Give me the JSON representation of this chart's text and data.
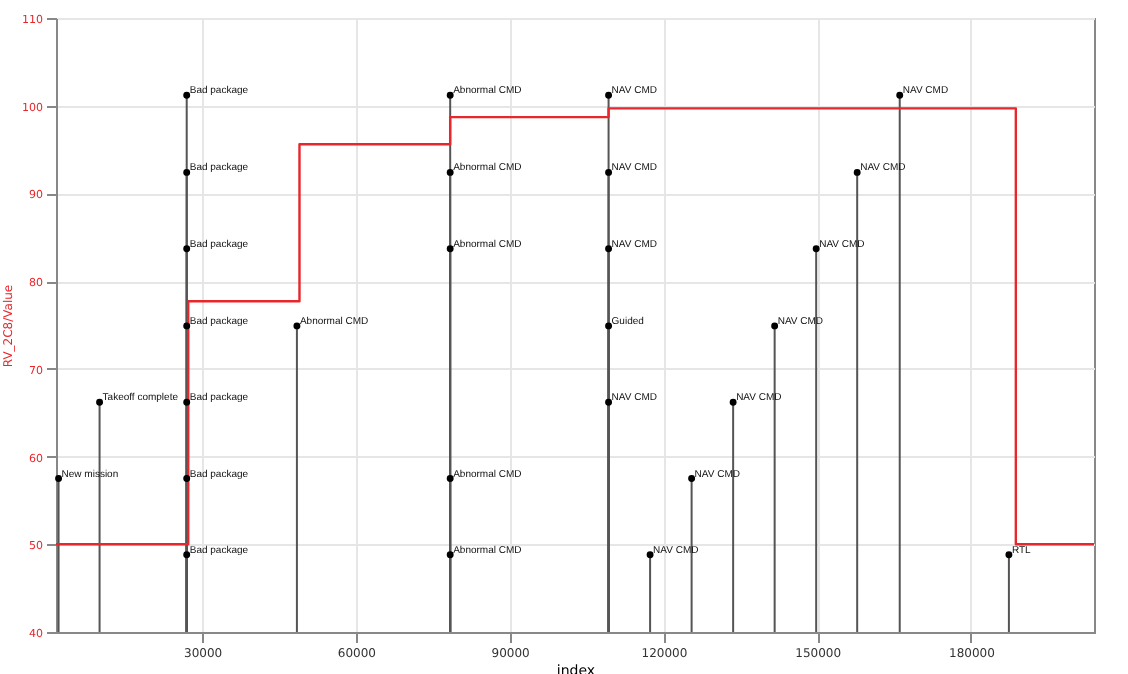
{
  "chart_data": {
    "type": "step",
    "xlabel": "index",
    "ylabel": "RV_2C8/Value",
    "xlim": [
      1500,
      204000
    ],
    "xticks": [
      30000,
      60000,
      90000,
      120000,
      150000,
      180000
    ],
    "ylim": [
      40,
      110
    ],
    "yticks": [
      40,
      50,
      60,
      70,
      80,
      90,
      100,
      110
    ],
    "grid": true,
    "series": [
      {
        "color": "#e8262b",
        "x": [
          1500,
          27300,
          49000,
          78400,
          109300,
          188750,
          204000
        ],
        "values": [
          50,
          77.7,
          95.6,
          98.7,
          99.7,
          50,
          50
        ]
      }
    ],
    "annotations": [
      {
        "text": "New mission",
        "x": 2000,
        "y": 57.5
      },
      {
        "text": "Takeoff complete",
        "x": 10000,
        "y": 66.2
      },
      {
        "text": "Bad package",
        "x": 27000,
        "y": 101.2
      },
      {
        "text": "Bad package",
        "x": 27000,
        "y": 92.4
      },
      {
        "text": "Bad package",
        "x": 27000,
        "y": 83.7
      },
      {
        "text": "Bad package",
        "x": 27000,
        "y": 74.9
      },
      {
        "text": "Bad package",
        "x": 27000,
        "y": 66.2
      },
      {
        "text": "Bad package",
        "x": 27000,
        "y": 57.5
      },
      {
        "text": "Bad package",
        "x": 27000,
        "y": 48.8
      },
      {
        "text": "Abnormal CMD",
        "x": 48500,
        "y": 74.9
      },
      {
        "text": "Abnormal CMD",
        "x": 78400,
        "y": 101.2
      },
      {
        "text": "Abnormal CMD",
        "x": 78400,
        "y": 92.4
      },
      {
        "text": "Abnormal CMD",
        "x": 78400,
        "y": 83.7
      },
      {
        "text": "Abnormal CMD",
        "x": 78400,
        "y": 57.5
      },
      {
        "text": "Abnormal CMD",
        "x": 78400,
        "y": 48.8
      },
      {
        "text": "NAV CMD",
        "x": 109300,
        "y": 101.2
      },
      {
        "text": "NAV CMD",
        "x": 109300,
        "y": 92.4
      },
      {
        "text": "NAV CMD",
        "x": 109300,
        "y": 83.7
      },
      {
        "text": "Guided",
        "x": 109300,
        "y": 74.9
      },
      {
        "text": "NAV CMD",
        "x": 109300,
        "y": 66.2
      },
      {
        "text": "NAV CMD",
        "x": 117400,
        "y": 48.8
      },
      {
        "text": "NAV CMD",
        "x": 125500,
        "y": 57.5
      },
      {
        "text": "NAV CMD",
        "x": 133600,
        "y": 66.2
      },
      {
        "text": "NAV CMD",
        "x": 141700,
        "y": 74.9
      },
      {
        "text": "NAV CMD",
        "x": 149800,
        "y": 83.7
      },
      {
        "text": "NAV CMD",
        "x": 157800,
        "y": 92.4
      },
      {
        "text": "NAV CMD",
        "x": 166100,
        "y": 101.2
      },
      {
        "text": "RTL",
        "x": 187400,
        "y": 48.8
      }
    ]
  }
}
